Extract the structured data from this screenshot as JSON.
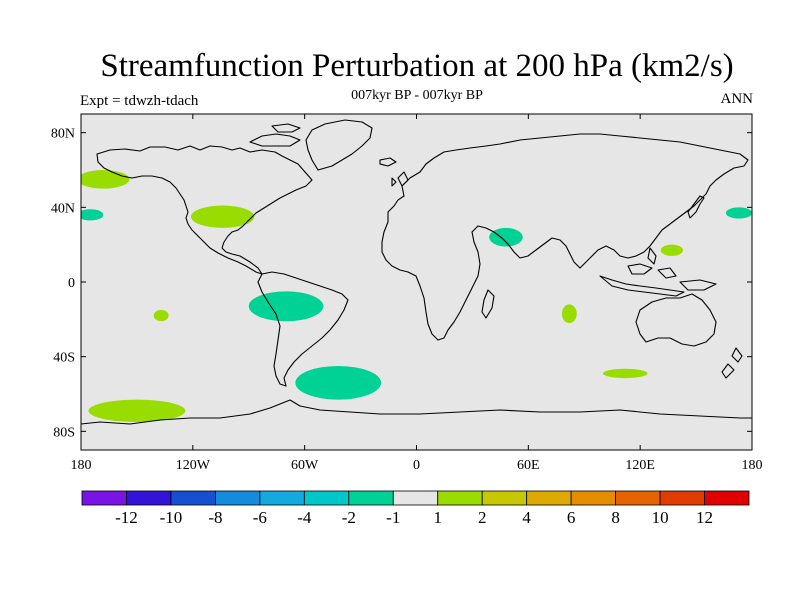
{
  "title": "Streamfunction Perturbation at 200 hPa (km2/s)",
  "left_subtitle": "Expt = tdwzh-tdach",
  "center_subtitle": "007kyr BP - 007kyr BP",
  "right_subtitle": "ANN",
  "map": {
    "background": "#e6e6e6",
    "lat_labels": [
      {
        "text": "80N",
        "lat": 80
      },
      {
        "text": "40N",
        "lat": 40
      },
      {
        "text": "0",
        "lat": 0
      },
      {
        "text": "40S",
        "lat": -40
      },
      {
        "text": "80S",
        "lat": -80
      }
    ],
    "lon_labels": [
      {
        "text": "180",
        "lon": -180
      },
      {
        "text": "120W",
        "lon": -120
      },
      {
        "text": "60W",
        "lon": -60
      },
      {
        "text": "0",
        "lon": 0
      },
      {
        "text": "60E",
        "lon": 60
      },
      {
        "text": "120E",
        "lon": 120
      },
      {
        "text": "180",
        "lon": 180
      }
    ],
    "anomaly_regions": [
      {
        "name": "north-pacific-positive",
        "lon": -168,
        "lat": 55,
        "rlon": 14,
        "rlat": 5,
        "color": "#99dd00"
      },
      {
        "name": "north-america-positive",
        "lon": -104,
        "lat": 35,
        "rlon": 17,
        "rlat": 6,
        "color": "#99dd00"
      },
      {
        "name": "pacific-west-negative",
        "lon": -175,
        "lat": 36,
        "rlon": 7,
        "rlat": 3,
        "color": "#00d194"
      },
      {
        "name": "pacific-east-negative",
        "lon": 173,
        "lat": 37,
        "rlon": 7,
        "rlat": 3,
        "color": "#00d194"
      },
      {
        "name": "arabia-negative",
        "lon": 48,
        "lat": 24,
        "rlon": 9,
        "rlat": 5,
        "color": "#00d194"
      },
      {
        "name": "west-pacific-positive",
        "lon": 137,
        "lat": 17,
        "rlon": 6,
        "rlat": 3,
        "color": "#99dd00"
      },
      {
        "name": "south-america-negative",
        "lon": -70,
        "lat": -13,
        "rlon": 20,
        "rlat": 8,
        "color": "#00d194"
      },
      {
        "name": "south-pacific-positive",
        "lon": -137,
        "lat": -18,
        "rlon": 4,
        "rlat": 3,
        "color": "#99dd00"
      },
      {
        "name": "indian-ocean-positive",
        "lon": 82,
        "lat": -17,
        "rlon": 4,
        "rlat": 5,
        "color": "#99dd00"
      },
      {
        "name": "south-atlantic-negative",
        "lon": -42,
        "lat": -54,
        "rlon": 23,
        "rlat": 9,
        "color": "#00d194"
      },
      {
        "name": "southern-ocean-pacific-positive",
        "lon": -150,
        "lat": -69,
        "rlon": 26,
        "rlat": 6,
        "color": "#99dd00"
      },
      {
        "name": "southern-ocean-indian-positive",
        "lon": 112,
        "lat": -49,
        "rlon": 12,
        "rlat": 2.5,
        "color": "#99dd00"
      }
    ]
  },
  "colorbar": {
    "colors": [
      "#7a14e6",
      "#3214d9",
      "#1450cf",
      "#148cdb",
      "#14aadf",
      "#00c8c8",
      "#00d194",
      "#e6e6e6",
      "#99dd00",
      "#c8c800",
      "#dcaa00",
      "#e68c00",
      "#e66400",
      "#e13c00",
      "#e00000"
    ],
    "labels": [
      "-12",
      "-10",
      "-8",
      "-6",
      "-4",
      "-2",
      "-1",
      "1",
      "2",
      "4",
      "6",
      "8",
      "10",
      "12"
    ]
  }
}
